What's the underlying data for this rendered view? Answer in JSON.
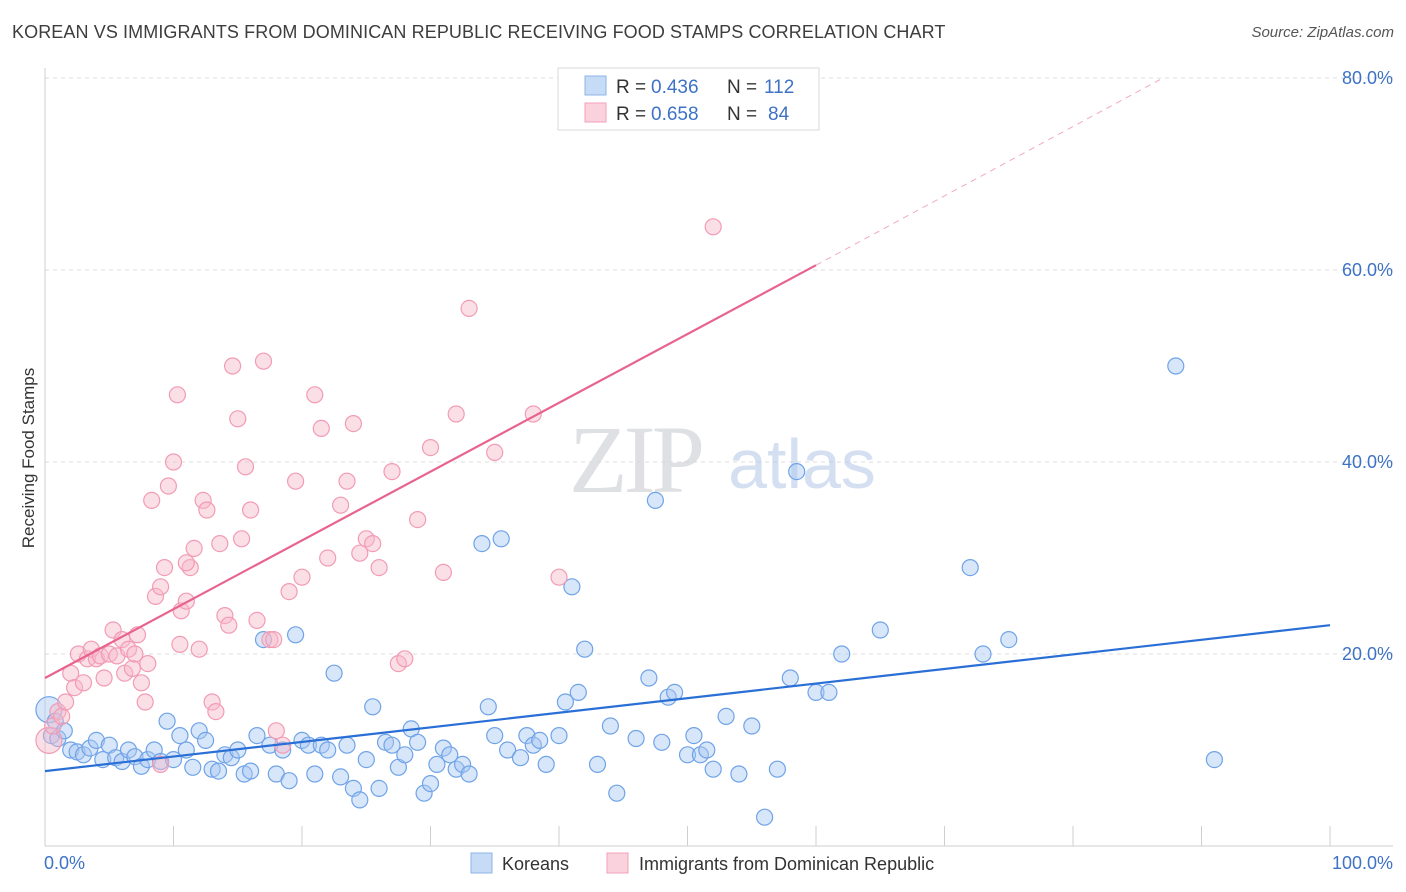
{
  "header": {
    "title": "KOREAN VS IMMIGRANTS FROM DOMINICAN REPUBLIC RECEIVING FOOD STAMPS CORRELATION CHART",
    "source": "Source: ZipAtlas.com"
  },
  "watermark": {
    "zip": "ZIP",
    "atlas": "atlas"
  },
  "legend_top": [
    {
      "r_label": "R = ",
      "r_value": "0.436",
      "n_label": "N = ",
      "n_value": "112",
      "color": "#a9c8f2"
    },
    {
      "r_label": "R = ",
      "r_value": "0.658",
      "n_label": "N = ",
      "n_value": "84",
      "color": "#f7b8c9"
    }
  ],
  "legend_bottom": [
    {
      "label": "Koreans",
      "color": "#a9c8f2"
    },
    {
      "label": "Immigrants from Dominican Republic",
      "color": "#f7b8c9"
    }
  ],
  "chart_data": {
    "type": "scatter",
    "title": "KOREAN VS IMMIGRANTS FROM DOMINICAN REPUBLIC RECEIVING FOOD STAMPS CORRELATION CHART",
    "xlabel": "",
    "ylabel": "Receiving Food Stamps",
    "xlim": [
      0,
      100
    ],
    "ylim": [
      0,
      82
    ],
    "x_tick_labels": [
      "0.0%",
      "100.0%"
    ],
    "y_ticks": [
      20,
      40,
      60,
      80
    ],
    "y_tick_labels": [
      "20.0%",
      "40.0%",
      "60.0%",
      "80.0%"
    ],
    "grid": true,
    "legend_position": "top-center",
    "series": [
      {
        "name": "Koreans",
        "color": "#6fa3e8",
        "line_color": "#2a6fd6",
        "trend": {
          "x0": 0,
          "y0": 7.8,
          "x1": 100,
          "y1": 23.0
        },
        "points": [
          [
            0.3,
            14.2
          ],
          [
            0.5,
            11.5
          ],
          [
            0.8,
            13.0
          ],
          [
            1,
            11.2
          ],
          [
            1.5,
            12.0
          ],
          [
            2,
            10.0
          ],
          [
            2.5,
            9.8
          ],
          [
            3,
            9.5
          ],
          [
            3.5,
            10.2
          ],
          [
            4,
            11.0
          ],
          [
            4.5,
            9.0
          ],
          [
            5,
            10.5
          ],
          [
            5.5,
            9.2
          ],
          [
            6,
            8.8
          ],
          [
            6.5,
            10.0
          ],
          [
            7,
            9.3
          ],
          [
            7.5,
            8.3
          ],
          [
            8,
            9.0
          ],
          [
            8.5,
            10.0
          ],
          [
            9,
            8.8
          ],
          [
            9.5,
            13.0
          ],
          [
            10,
            9.0
          ],
          [
            10.5,
            11.5
          ],
          [
            11,
            10.0
          ],
          [
            11.5,
            8.2
          ],
          [
            12,
            12.0
          ],
          [
            12.5,
            11.0
          ],
          [
            13,
            8.0
          ],
          [
            13.5,
            7.8
          ],
          [
            14,
            9.5
          ],
          [
            14.5,
            9.2
          ],
          [
            15,
            10.0
          ],
          [
            15.5,
            7.5
          ],
          [
            16,
            7.8
          ],
          [
            16.5,
            11.5
          ],
          [
            17,
            21.5
          ],
          [
            17.5,
            10.5
          ],
          [
            18,
            7.5
          ],
          [
            18.5,
            10.0
          ],
          [
            19,
            6.8
          ],
          [
            19.5,
            22.0
          ],
          [
            20,
            11.0
          ],
          [
            20.5,
            10.5
          ],
          [
            21,
            7.5
          ],
          [
            21.5,
            10.5
          ],
          [
            22,
            10.0
          ],
          [
            22.5,
            18.0
          ],
          [
            23,
            7.2
          ],
          [
            23.5,
            10.5
          ],
          [
            24,
            6.0
          ],
          [
            24.5,
            4.8
          ],
          [
            25,
            9.0
          ],
          [
            25.5,
            14.5
          ],
          [
            26,
            6.0
          ],
          [
            26.5,
            10.8
          ],
          [
            27,
            10.5
          ],
          [
            27.5,
            8.2
          ],
          [
            28,
            9.5
          ],
          [
            28.5,
            12.2
          ],
          [
            29,
            10.8
          ],
          [
            29.5,
            5.5
          ],
          [
            30,
            6.5
          ],
          [
            30.5,
            8.5
          ],
          [
            31,
            10.2
          ],
          [
            31.5,
            9.5
          ],
          [
            32,
            8.0
          ],
          [
            32.5,
            8.5
          ],
          [
            33,
            7.5
          ],
          [
            34,
            31.5
          ],
          [
            34.5,
            14.5
          ],
          [
            35,
            11.5
          ],
          [
            35.5,
            32.0
          ],
          [
            36,
            10.0
          ],
          [
            37,
            9.2
          ],
          [
            37.5,
            11.5
          ],
          [
            38,
            10.5
          ],
          [
            38.5,
            11.0
          ],
          [
            39,
            8.5
          ],
          [
            40,
            11.5
          ],
          [
            40.5,
            15.0
          ],
          [
            41,
            27.0
          ],
          [
            41.5,
            16.0
          ],
          [
            42,
            20.5
          ],
          [
            43,
            8.5
          ],
          [
            44,
            12.5
          ],
          [
            44.5,
            5.5
          ],
          [
            46,
            11.2
          ],
          [
            47,
            17.5
          ],
          [
            47.5,
            36.0
          ],
          [
            48,
            10.8
          ],
          [
            48.5,
            15.5
          ],
          [
            49,
            16.0
          ],
          [
            50,
            9.5
          ],
          [
            50.5,
            11.5
          ],
          [
            51,
            9.5
          ],
          [
            51.5,
            10.0
          ],
          [
            52,
            8.0
          ],
          [
            53,
            13.5
          ],
          [
            54,
            7.5
          ],
          [
            55,
            12.5
          ],
          [
            56,
            3.0
          ],
          [
            57,
            8.0
          ],
          [
            58,
            17.5
          ],
          [
            58.5,
            39.0
          ],
          [
            60,
            16.0
          ],
          [
            61,
            16.0
          ],
          [
            62,
            20.0
          ],
          [
            65,
            22.5
          ],
          [
            72,
            29.0
          ],
          [
            73,
            20.0
          ],
          [
            75,
            21.5
          ],
          [
            88,
            50.0
          ],
          [
            91,
            9.0
          ]
        ]
      },
      {
        "name": "Immigrants from Dominican Republic",
        "color": "#f29bb4",
        "line_color": "#e8638e",
        "trend": {
          "x0": 0,
          "y0": 17.5,
          "x1": 60,
          "y1": 60.5
        },
        "trend_dashed": {
          "x0": 60,
          "y0": 60.5,
          "x1": 87,
          "y1": 80.0
        },
        "points": [
          [
            0.3,
            11.0
          ],
          [
            0.6,
            12.5
          ],
          [
            1,
            14.0
          ],
          [
            1.3,
            13.5
          ],
          [
            1.6,
            15.0
          ],
          [
            2,
            18.0
          ],
          [
            2.3,
            16.5
          ],
          [
            2.6,
            20.0
          ],
          [
            3,
            17.0
          ],
          [
            3.3,
            19.5
          ],
          [
            3.6,
            20.5
          ],
          [
            4,
            19.5
          ],
          [
            4.3,
            19.8
          ],
          [
            4.6,
            17.5
          ],
          [
            5,
            20.0
          ],
          [
            5.3,
            22.5
          ],
          [
            5.6,
            19.8
          ],
          [
            6,
            21.5
          ],
          [
            6.2,
            18.0
          ],
          [
            6.5,
            20.5
          ],
          [
            6.8,
            18.5
          ],
          [
            7,
            20.0
          ],
          [
            7.2,
            22.0
          ],
          [
            7.5,
            17.0
          ],
          [
            7.8,
            15.0
          ],
          [
            8,
            19.0
          ],
          [
            8.3,
            36.0
          ],
          [
            8.6,
            26.0
          ],
          [
            9,
            27.0
          ],
          [
            9.3,
            29.0
          ],
          [
            9.6,
            37.5
          ],
          [
            10,
            40.0
          ],
          [
            10.3,
            47.0
          ],
          [
            10.6,
            24.5
          ],
          [
            11,
            25.5
          ],
          [
            11.3,
            29.0
          ],
          [
            11.6,
            31.0
          ],
          [
            12,
            20.5
          ],
          [
            12.3,
            36.0
          ],
          [
            12.6,
            35.0
          ],
          [
            13,
            15.0
          ],
          [
            13.3,
            14.0
          ],
          [
            13.6,
            31.5
          ],
          [
            14,
            24.0
          ],
          [
            14.3,
            23.0
          ],
          [
            14.6,
            50.0
          ],
          [
            15,
            44.5
          ],
          [
            15.3,
            32.0
          ],
          [
            15.6,
            39.5
          ],
          [
            16,
            35.0
          ],
          [
            16.5,
            23.5
          ],
          [
            17,
            50.5
          ],
          [
            17.5,
            21.5
          ],
          [
            18,
            12.0
          ],
          [
            18.5,
            10.5
          ],
          [
            19,
            26.5
          ],
          [
            19.5,
            38.0
          ],
          [
            20,
            28.0
          ],
          [
            21,
            47.0
          ],
          [
            21.5,
            43.5
          ],
          [
            22,
            30.0
          ],
          [
            23,
            35.5
          ],
          [
            23.5,
            38.0
          ],
          [
            24,
            44.0
          ],
          [
            24.5,
            30.5
          ],
          [
            25,
            32.0
          ],
          [
            26,
            29.0
          ],
          [
            27,
            39.0
          ],
          [
            27.5,
            19.0
          ],
          [
            28,
            19.5
          ],
          [
            29,
            34.0
          ],
          [
            30,
            41.5
          ],
          [
            31,
            28.5
          ],
          [
            32,
            45.0
          ],
          [
            33,
            56.0
          ],
          [
            35,
            41.0
          ],
          [
            38,
            45.0
          ],
          [
            40,
            28.0
          ],
          [
            52,
            64.5
          ],
          [
            9.0,
            8.5
          ],
          [
            10.5,
            21.0
          ],
          [
            11.0,
            29.5
          ],
          [
            25.5,
            31.5
          ],
          [
            17.8,
            21.5
          ]
        ]
      }
    ]
  }
}
